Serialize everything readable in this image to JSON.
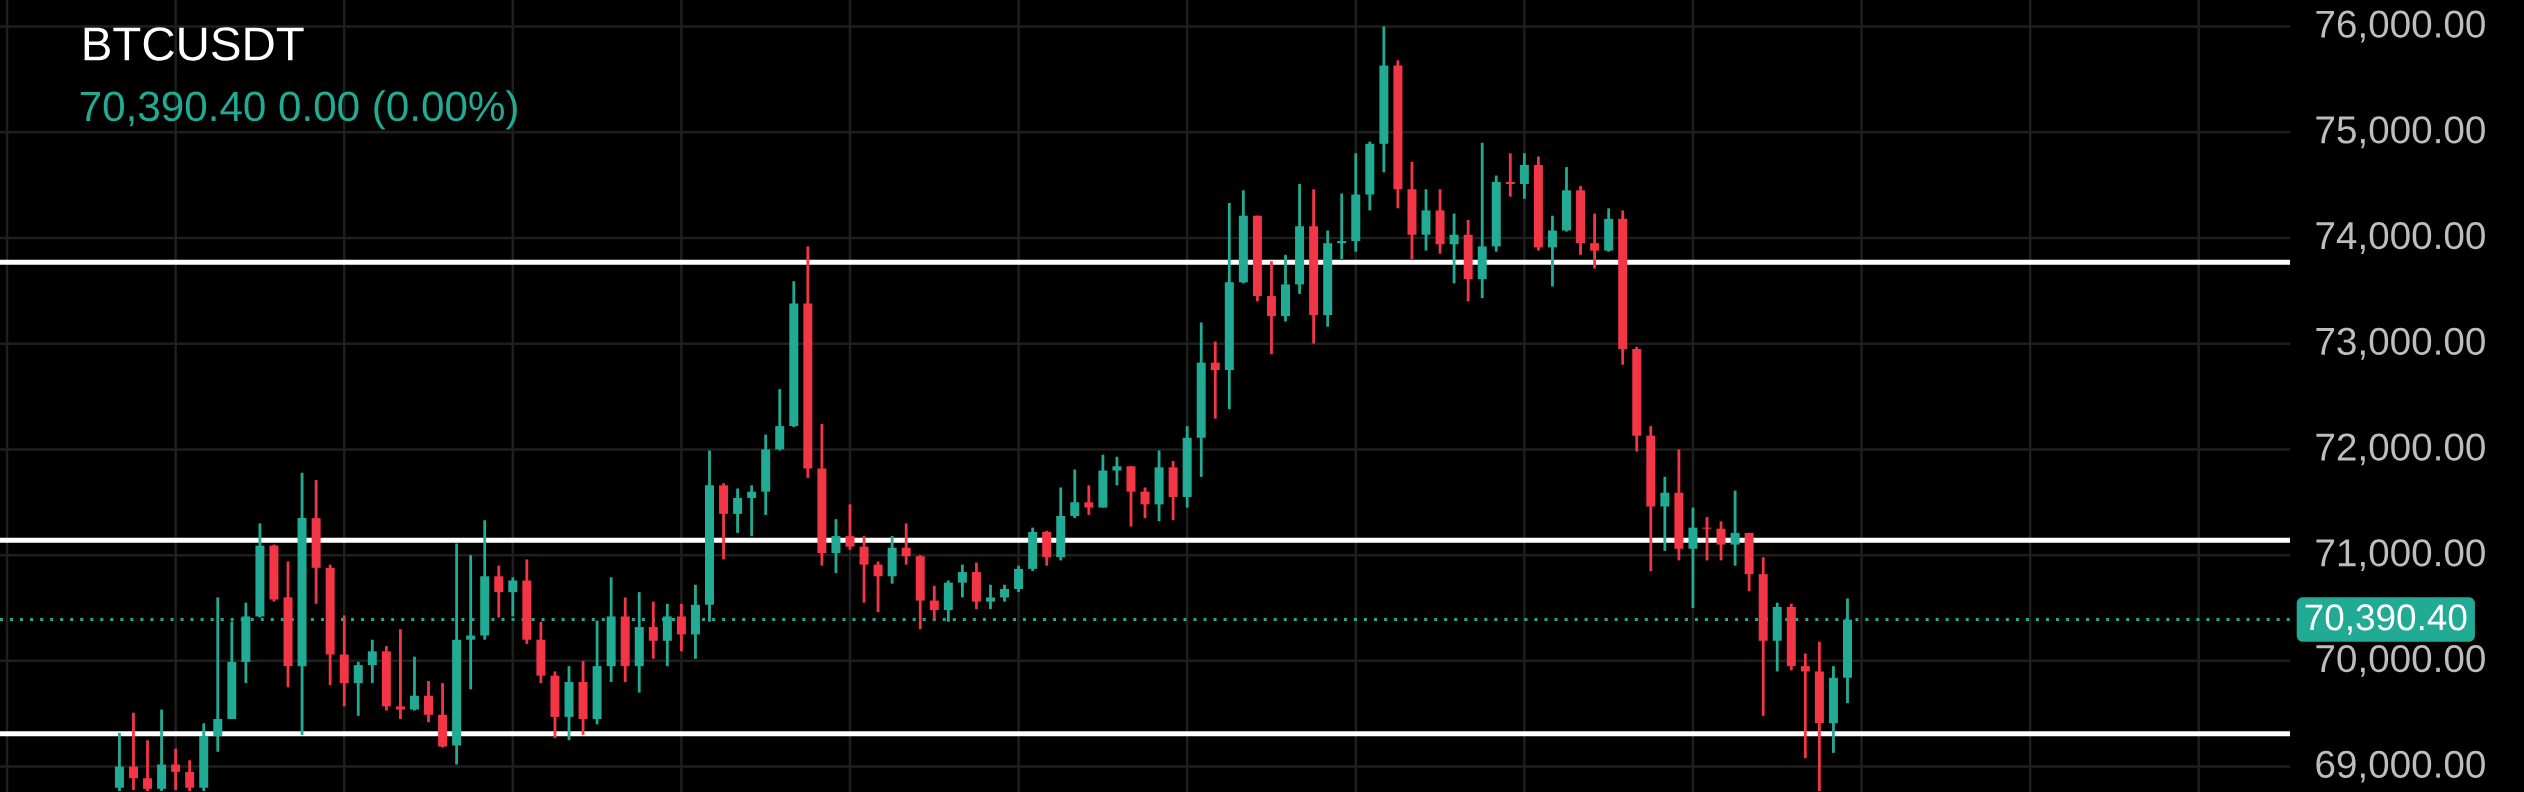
{
  "chart_data": {
    "type": "candlestick",
    "title": "BTCUSDT",
    "subtitle": "70,390.40  0.00 (0.00%)",
    "categories": [
      null,
      null,
      null,
      null,
      null,
      null,
      null,
      null,
      null,
      null,
      null,
      null,
      null,
      null,
      null,
      null,
      null,
      null,
      null,
      null,
      null,
      null,
      null,
      null,
      null,
      null,
      null,
      null,
      null,
      null,
      null,
      null,
      null,
      null,
      null,
      null,
      null,
      null,
      null,
      null,
      null,
      null,
      null,
      null,
      null,
      null,
      null,
      null,
      null,
      null,
      null,
      null,
      null,
      null,
      null,
      null,
      null,
      null,
      null,
      null,
      null,
      null,
      null,
      null,
      null,
      null,
      null,
      null,
      null,
      null,
      null,
      null,
      null,
      null,
      null,
      null,
      null,
      null,
      null,
      null,
      null,
      null,
      null,
      null,
      null,
      null,
      null,
      null,
      null,
      null,
      null,
      null,
      null,
      null,
      null,
      null,
      null,
      null,
      null,
      null,
      null,
      null,
      null,
      null,
      null,
      null,
      null,
      null,
      null,
      null,
      null,
      null,
      null,
      null,
      null,
      null,
      null,
      null,
      null,
      null,
      null,
      null,
      null,
      null,
      null,
      null,
      null,
      null,
      null,
      null,
      null,
      null,
      null,
      null,
      null,
      null,
      null,
      null,
      null,
      null,
      null,
      null,
      null,
      null,
      null,
      null,
      null,
      null,
      null,
      null,
      null,
      null,
      null,
      null,
      null,
      null,
      null,
      null,
      null,
      null,
      null,
      null,
      null
    ],
    "ohlc": [
      null,
      null,
      null,
      null,
      null,
      null,
      null,
      null,
      [
        68800,
        69320,
        68770,
        69000
      ],
      [
        69000,
        69510,
        68780,
        68890
      ],
      [
        68890,
        69250,
        68770,
        68790
      ],
      [
        68790,
        69540,
        68770,
        69020
      ],
      [
        69020,
        69170,
        68780,
        68950
      ],
      [
        68950,
        69060,
        68770,
        68800
      ],
      [
        68800,
        69410,
        68770,
        69290
      ],
      [
        69290,
        70600,
        69140,
        69450
      ],
      [
        69450,
        70370,
        69450,
        69990
      ],
      [
        69990,
        70550,
        69790,
        70420
      ],
      [
        70420,
        71300,
        70410,
        71090
      ],
      [
        71090,
        71100,
        70560,
        70580
      ],
      [
        70600,
        70940,
        69750,
        69950
      ],
      [
        69950,
        71780,
        69300,
        71350
      ],
      [
        71350,
        71710,
        70540,
        70880
      ],
      [
        70880,
        70910,
        69770,
        70060
      ],
      [
        70060,
        70430,
        69570,
        69790
      ],
      [
        69790,
        69990,
        69480,
        69960
      ],
      [
        69960,
        70200,
        69790,
        70090
      ],
      [
        70090,
        70140,
        69530,
        69570
      ],
      [
        69570,
        70300,
        69450,
        69540
      ],
      [
        69540,
        70040,
        69530,
        69670
      ],
      [
        69670,
        69810,
        69420,
        69490
      ],
      [
        69490,
        69790,
        69180,
        69190
      ],
      [
        69200,
        71110,
        69020,
        70200
      ],
      [
        70200,
        71000,
        69730,
        70240
      ],
      [
        70240,
        71330,
        70200,
        70800
      ],
      [
        70800,
        70900,
        70410,
        70650
      ],
      [
        70650,
        70790,
        70420,
        70760
      ],
      [
        70760,
        70960,
        70160,
        70200
      ],
      [
        70200,
        70370,
        69790,
        69860
      ],
      [
        69860,
        69900,
        69270,
        69470
      ],
      [
        69470,
        69950,
        69250,
        69800
      ],
      [
        69800,
        70000,
        69300,
        69450
      ],
      [
        69450,
        70380,
        69400,
        69950
      ],
      [
        69950,
        70790,
        69800,
        70420
      ],
      [
        70420,
        70600,
        69800,
        69950
      ],
      [
        69950,
        70650,
        69700,
        70320
      ],
      [
        70320,
        70560,
        70020,
        70190
      ],
      [
        70190,
        70540,
        69950,
        70420
      ],
      [
        70420,
        70540,
        70090,
        70250
      ],
      [
        70250,
        70720,
        70020,
        70530
      ],
      [
        70530,
        71990,
        70370,
        71660
      ],
      [
        71660,
        71680,
        70960,
        71390
      ],
      [
        71390,
        71630,
        71210,
        71540
      ],
      [
        71540,
        71660,
        71180,
        71600
      ],
      [
        71600,
        72140,
        71380,
        72000
      ],
      [
        72000,
        72570,
        71990,
        72220
      ],
      [
        72220,
        73590,
        72210,
        73380
      ],
      [
        73380,
        73920,
        71730,
        71820
      ],
      [
        71820,
        72240,
        70900,
        71020
      ],
      [
        71020,
        71340,
        70830,
        71180
      ],
      [
        71180,
        71480,
        71050,
        71080
      ],
      [
        71080,
        71180,
        70550,
        70910
      ],
      [
        70910,
        70940,
        70460,
        70800
      ],
      [
        70800,
        71180,
        70730,
        71070
      ],
      [
        71070,
        71300,
        70910,
        70990
      ],
      [
        70990,
        71000,
        70300,
        70570
      ],
      [
        70570,
        70710,
        70390,
        70480
      ],
      [
        70480,
        70760,
        70370,
        70740
      ],
      [
        70740,
        70910,
        70600,
        70840
      ],
      [
        70840,
        70930,
        70490,
        70560
      ],
      [
        70560,
        70720,
        70490,
        70600
      ],
      [
        70600,
        70720,
        70560,
        70680
      ],
      [
        70680,
        70900,
        70650,
        70870
      ],
      [
        70870,
        71260,
        70850,
        71220
      ],
      [
        71220,
        71230,
        70900,
        70980
      ],
      [
        70980,
        71640,
        70950,
        71370
      ],
      [
        71370,
        71810,
        71350,
        71500
      ],
      [
        71500,
        71660,
        71380,
        71450
      ],
      [
        71450,
        71950,
        71450,
        71800
      ],
      [
        71800,
        71930,
        71660,
        71840
      ],
      [
        71840,
        71840,
        71270,
        71600
      ],
      [
        71600,
        71640,
        71350,
        71480
      ],
      [
        71480,
        71990,
        71320,
        71830
      ],
      [
        71830,
        71890,
        71330,
        71550
      ],
      [
        71550,
        72220,
        71450,
        72110
      ],
      [
        72110,
        73200,
        71740,
        72820
      ],
      [
        72820,
        73020,
        72290,
        72750
      ],
      [
        72750,
        74330,
        72380,
        73580
      ],
      [
        73580,
        74450,
        73570,
        74210
      ],
      [
        74210,
        74210,
        73400,
        73450
      ],
      [
        73450,
        73780,
        72900,
        73260
      ],
      [
        73260,
        73840,
        73210,
        73560
      ],
      [
        73560,
        74510,
        73470,
        74110
      ],
      [
        74110,
        74460,
        73000,
        73270
      ],
      [
        73270,
        74070,
        73160,
        73950
      ],
      [
        73950,
        74420,
        73800,
        73970
      ],
      [
        73970,
        74800,
        73870,
        74410
      ],
      [
        74410,
        74910,
        74260,
        74890
      ],
      [
        74890,
        76000,
        74620,
        75630
      ],
      [
        75630,
        75680,
        74280,
        74460
      ],
      [
        74460,
        74720,
        73800,
        74030
      ],
      [
        74030,
        74460,
        73880,
        74260
      ],
      [
        74260,
        74460,
        73850,
        73940
      ],
      [
        73940,
        74230,
        73570,
        74030
      ],
      [
        74030,
        74170,
        73400,
        73610
      ],
      [
        73610,
        74900,
        73430,
        73920
      ],
      [
        73920,
        74590,
        73870,
        74530
      ],
      [
        74530,
        74800,
        74390,
        74510
      ],
      [
        74510,
        74800,
        74370,
        74690
      ],
      [
        74690,
        74770,
        73880,
        73910
      ],
      [
        73910,
        74210,
        73540,
        74070
      ],
      [
        74070,
        74670,
        74060,
        74450
      ],
      [
        74450,
        74490,
        73840,
        73950
      ],
      [
        73950,
        74230,
        73710,
        73880
      ],
      [
        73880,
        74280,
        73870,
        74180
      ],
      [
        74180,
        74260,
        72800,
        72950
      ],
      [
        72950,
        72970,
        71980,
        72130
      ],
      [
        72130,
        72220,
        70850,
        71460
      ],
      [
        71460,
        71740,
        71040,
        71590
      ],
      [
        71590,
        72000,
        70950,
        71060
      ],
      [
        71060,
        71450,
        70500,
        71260
      ],
      [
        71260,
        71360,
        70950,
        71250
      ],
      [
        71250,
        71320,
        70950,
        71100
      ],
      [
        71100,
        71610,
        70900,
        71210
      ],
      [
        71210,
        71210,
        70660,
        70820
      ],
      [
        70820,
        70980,
        69480,
        70190
      ],
      [
        70190,
        70550,
        69900,
        70510
      ],
      [
        70510,
        70540,
        69910,
        69950
      ],
      [
        69950,
        70070,
        69080,
        69900
      ],
      [
        69900,
        70180,
        68770,
        69410
      ],
      [
        69410,
        69950,
        69130,
        69840
      ],
      [
        69840,
        70590,
        69600,
        70390.4
      ],
      null,
      null,
      null,
      null,
      null,
      null,
      null,
      null,
      null,
      null,
      null,
      null,
      null,
      null,
      null,
      null,
      null,
      null,
      null,
      null,
      null,
      null,
      null,
      null,
      null,
      null,
      null,
      null,
      null,
      null,
      null
    ],
    "colors": [
      null,
      null,
      null,
      null,
      null,
      null,
      null,
      null,
      "#22ab94",
      "#f23645",
      "#f23645",
      "#22ab94",
      "#f23645",
      "#f23645",
      "#22ab94",
      "#22ab94",
      "#22ab94",
      "#22ab94",
      "#22ab94",
      "#f23645",
      "#f23645",
      "#22ab94",
      "#f23645",
      "#f23645",
      "#f23645",
      "#22ab94",
      "#22ab94",
      "#f23645",
      "#f23645",
      "#22ab94",
      "#f23645",
      "#f23645",
      "#22ab94",
      "#22ab94",
      "#22ab94",
      "#f23645",
      "#22ab94",
      "#f23645",
      "#f23645",
      "#f23645",
      "#22ab94",
      "#f23645",
      "#22ab94",
      "#22ab94",
      "#f23645",
      "#22ab94",
      "#f23645",
      "#22ab94",
      "#f23645",
      "#22ab94",
      "#22ab94",
      "#f23645",
      "#22ab94",
      "#22ab94",
      "#22ab94",
      "#22ab94",
      "#22ab94",
      "#f23645",
      "#f23645",
      "#22ab94",
      "#f23645",
      "#f23645",
      "#f23645",
      "#22ab94",
      "#f23645",
      "#f23645",
      "#f23645",
      "#22ab94",
      "#22ab94",
      "#f23645",
      "#22ab94",
      "#22ab94",
      "#22ab94",
      "#22ab94",
      "#f23645",
      "#22ab94",
      "#22ab94",
      "#f23645",
      "#22ab94",
      "#22ab94",
      "#f23645",
      "#f23645",
      "#22ab94",
      "#f23645",
      "#22ab94",
      "#22ab94",
      "#f23645",
      "#22ab94",
      "#22ab94",
      "#f23645",
      "#f23645",
      "#22ab94",
      "#22ab94",
      "#f23645",
      "#22ab94",
      "#22ab94",
      "#22ab94",
      "#22ab94",
      "#22ab94",
      "#f23645",
      "#f23645",
      "#22ab94",
      "#f23645",
      "#22ab94",
      "#f23645",
      "#22ab94",
      "#22ab94",
      "#f23645",
      "#22ab94",
      "#f23645",
      "#22ab94",
      "#22ab94",
      "#f23645",
      "#f23645",
      "#22ab94",
      "#f23645",
      "#f23645",
      "#f23645",
      "#22ab94",
      "#f23645",
      "#22ab94",
      "#f23645",
      "#f23645",
      "#22ab94",
      "#f23645",
      "#f23645",
      "#22ab94",
      "#f23645",
      "#f23645",
      "#f23645",
      "#22ab94",
      "#22ab94",
      null,
      null,
      null,
      null,
      null,
      null,
      null,
      null,
      null,
      null,
      null,
      null,
      null,
      null,
      null,
      null,
      null,
      null,
      null,
      null,
      null,
      null,
      null,
      null,
      null,
      null,
      null,
      null,
      null,
      null,
      null
    ],
    "ylim": [
      68760,
      76250
    ],
    "yticks": [
      {
        "value": 69000,
        "label": "69,000.00"
      },
      {
        "value": 70000,
        "label": "70,000.00"
      },
      {
        "value": 71000,
        "label": "71,000.00"
      },
      {
        "value": 72000,
        "label": "72,000.00"
      },
      {
        "value": 73000,
        "label": "73,000.00"
      },
      {
        "value": 74000,
        "label": "74,000.00"
      },
      {
        "value": 75000,
        "label": "75,000.00"
      },
      {
        "value": 76000,
        "label": "76,000.00"
      }
    ],
    "ref_lines": [
      {
        "axis": "y",
        "value": 73770,
        "color": "#ffffff"
      },
      {
        "axis": "y",
        "value": 71140,
        "color": "#ffffff"
      },
      {
        "axis": "y",
        "value": 69310,
        "color": "#ffffff"
      },
      {
        "axis": "y",
        "value": 70390.4,
        "label": "70,390.40",
        "color": "#22ab94",
        "line_style": "dotted"
      }
    ],
    "grid": true,
    "tick_labels": "y"
  }
}
